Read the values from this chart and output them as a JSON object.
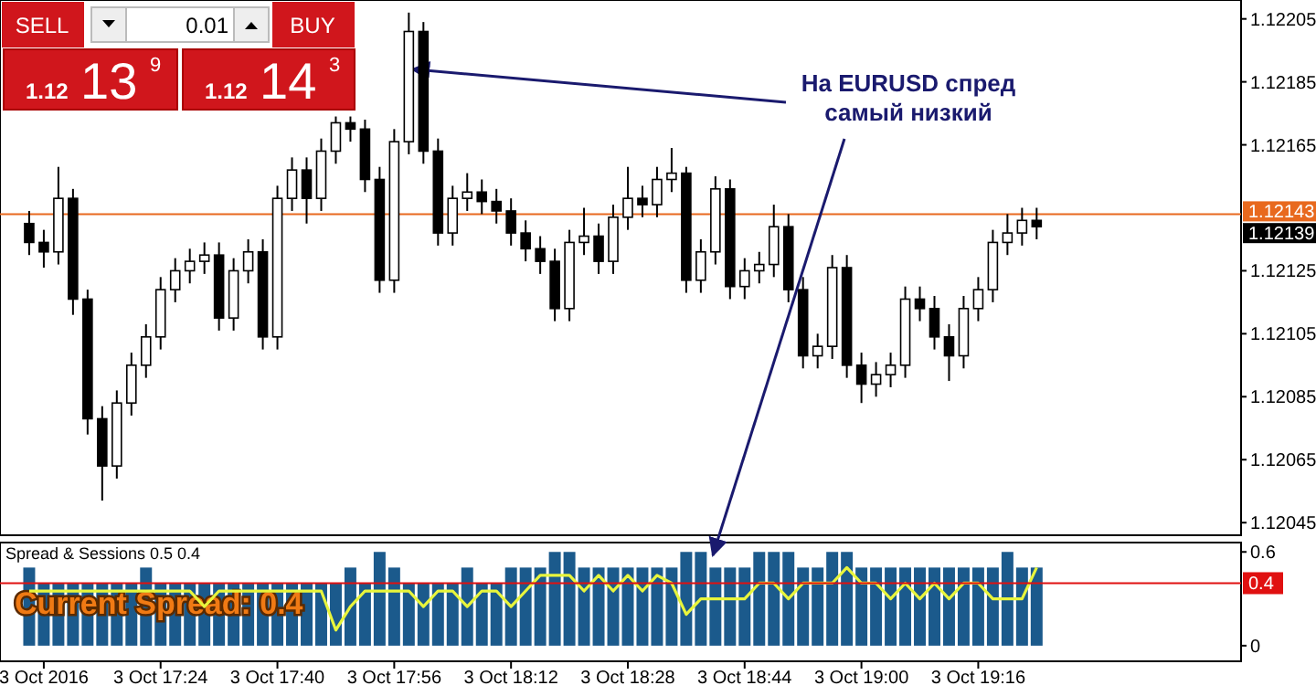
{
  "chart_data": [
    {
      "type": "candlestick",
      "tick_labels": "y",
      "xlim": [
        "2016-10-03T17:02",
        "2016-10-03T19:52"
      ],
      "ylim": [
        1.12041,
        1.12211
      ],
      "yticks": [
        1.12205,
        1.12185,
        1.12165,
        1.12125,
        1.12105,
        1.12085,
        1.12065,
        1.12045
      ],
      "x": [
        "2016-10-03T17:06",
        "2016-10-03T17:08",
        "2016-10-03T17:10",
        "2016-10-03T17:12",
        "2016-10-03T17:14",
        "2016-10-03T17:16",
        "2016-10-03T17:18",
        "2016-10-03T17:20",
        "2016-10-03T17:22",
        "2016-10-03T17:24",
        "2016-10-03T17:26",
        "2016-10-03T17:28",
        "2016-10-03T17:30",
        "2016-10-03T17:32",
        "2016-10-03T17:34",
        "2016-10-03T17:36",
        "2016-10-03T17:38",
        "2016-10-03T17:40",
        "2016-10-03T17:42",
        "2016-10-03T17:44",
        "2016-10-03T17:46",
        "2016-10-03T17:48",
        "2016-10-03T17:50",
        "2016-10-03T17:52",
        "2016-10-03T17:54",
        "2016-10-03T17:56",
        "2016-10-03T17:58",
        "2016-10-03T18:00",
        "2016-10-03T18:02",
        "2016-10-03T18:04",
        "2016-10-03T18:06",
        "2016-10-03T18:08",
        "2016-10-03T18:10",
        "2016-10-03T18:12",
        "2016-10-03T18:14",
        "2016-10-03T18:16",
        "2016-10-03T18:18",
        "2016-10-03T18:20",
        "2016-10-03T18:22",
        "2016-10-03T18:24",
        "2016-10-03T18:26",
        "2016-10-03T18:28",
        "2016-10-03T18:30",
        "2016-10-03T18:32",
        "2016-10-03T18:34",
        "2016-10-03T18:36",
        "2016-10-03T18:38",
        "2016-10-03T18:40",
        "2016-10-03T18:42",
        "2016-10-03T18:44",
        "2016-10-03T18:46",
        "2016-10-03T18:48",
        "2016-10-03T18:50",
        "2016-10-03T18:52",
        "2016-10-03T18:54",
        "2016-10-03T18:56",
        "2016-10-03T18:58",
        "2016-10-03T19:00",
        "2016-10-03T19:02",
        "2016-10-03T19:04",
        "2016-10-03T19:06",
        "2016-10-03T19:08",
        "2016-10-03T19:10",
        "2016-10-03T19:12",
        "2016-10-03T19:14",
        "2016-10-03T19:16",
        "2016-10-03T19:18",
        "2016-10-03T19:20",
        "2016-10-03T19:22",
        "2016-10-03T19:24"
      ],
      "ohlc": [
        [
          1.1214,
          1.12144,
          1.1213,
          1.12134
        ],
        [
          1.12134,
          1.12138,
          1.12126,
          1.12131
        ],
        [
          1.12131,
          1.12158,
          1.12127,
          1.12148
        ],
        [
          1.12148,
          1.12151,
          1.12111,
          1.12116
        ],
        [
          1.12116,
          1.12119,
          1.12073,
          1.12078
        ],
        [
          1.12078,
          1.12082,
          1.12052,
          1.12063
        ],
        [
          1.12063,
          1.12087,
          1.12059,
          1.12083
        ],
        [
          1.12083,
          1.12099,
          1.12079,
          1.12095
        ],
        [
          1.12095,
          1.12108,
          1.12091,
          1.12104
        ],
        [
          1.12104,
          1.12123,
          1.121,
          1.12119
        ],
        [
          1.12119,
          1.12129,
          1.12115,
          1.12125
        ],
        [
          1.12125,
          1.12132,
          1.12121,
          1.12128
        ],
        [
          1.12128,
          1.12134,
          1.12124,
          1.1213
        ],
        [
          1.1213,
          1.12134,
          1.12106,
          1.1211
        ],
        [
          1.1211,
          1.12129,
          1.12106,
          1.12125
        ],
        [
          1.12125,
          1.12135,
          1.12121,
          1.12131
        ],
        [
          1.12131,
          1.12135,
          1.121,
          1.12104
        ],
        [
          1.12104,
          1.12152,
          1.121,
          1.12148
        ],
        [
          1.12148,
          1.12161,
          1.12144,
          1.12157
        ],
        [
          1.12157,
          1.12161,
          1.1214,
          1.12148
        ],
        [
          1.12148,
          1.12167,
          1.12144,
          1.12163
        ],
        [
          1.12163,
          1.12174,
          1.12159,
          1.12172
        ],
        [
          1.12172,
          1.12174,
          1.12166,
          1.1217
        ],
        [
          1.1217,
          1.12173,
          1.1215,
          1.12154
        ],
        [
          1.12154,
          1.12158,
          1.12118,
          1.12122
        ],
        [
          1.12122,
          1.1217,
          1.12118,
          1.12166
        ],
        [
          1.12166,
          1.12207,
          1.12162,
          1.12201
        ],
        [
          1.12201,
          1.12204,
          1.12159,
          1.12163
        ],
        [
          1.12163,
          1.12167,
          1.12133,
          1.12137
        ],
        [
          1.12137,
          1.12152,
          1.12133,
          1.12148
        ],
        [
          1.12148,
          1.12156,
          1.12144,
          1.1215
        ],
        [
          1.1215,
          1.12154,
          1.12143,
          1.12147
        ],
        [
          1.12147,
          1.12151,
          1.1214,
          1.12144
        ],
        [
          1.12144,
          1.12148,
          1.12133,
          1.12137
        ],
        [
          1.12137,
          1.12141,
          1.12128,
          1.12132
        ],
        [
          1.12132,
          1.12136,
          1.12124,
          1.12128
        ],
        [
          1.12128,
          1.12132,
          1.12109,
          1.12113
        ],
        [
          1.12113,
          1.12138,
          1.12109,
          1.12134
        ],
        [
          1.12134,
          1.12145,
          1.1213,
          1.12136
        ],
        [
          1.12136,
          1.1214,
          1.12124,
          1.12128
        ],
        [
          1.12128,
          1.12146,
          1.12124,
          1.12142
        ],
        [
          1.12142,
          1.12158,
          1.12138,
          1.12148
        ],
        [
          1.12148,
          1.12152,
          1.12142,
          1.12146
        ],
        [
          1.12146,
          1.12158,
          1.12142,
          1.12154
        ],
        [
          1.12154,
          1.12164,
          1.1215,
          1.12156
        ],
        [
          1.12156,
          1.12158,
          1.12118,
          1.12122
        ],
        [
          1.12122,
          1.12135,
          1.12118,
          1.12131
        ],
        [
          1.12131,
          1.12155,
          1.12127,
          1.12151
        ],
        [
          1.12151,
          1.12154,
          1.12116,
          1.1212
        ],
        [
          1.1212,
          1.12129,
          1.12116,
          1.12125
        ],
        [
          1.12125,
          1.12131,
          1.12121,
          1.12127
        ],
        [
          1.12127,
          1.12146,
          1.12123,
          1.12139
        ],
        [
          1.12139,
          1.12143,
          1.12115,
          1.12119
        ],
        [
          1.12119,
          1.12123,
          1.12094,
          1.12098
        ],
        [
          1.12098,
          1.12105,
          1.12094,
          1.12101
        ],
        [
          1.12101,
          1.1213,
          1.12097,
          1.12126
        ],
        [
          1.12126,
          1.1213,
          1.12091,
          1.12095
        ],
        [
          1.12095,
          1.12099,
          1.12083,
          1.12089
        ],
        [
          1.12089,
          1.12096,
          1.12085,
          1.12092
        ],
        [
          1.12092,
          1.12099,
          1.12088,
          1.12095
        ],
        [
          1.12095,
          1.1212,
          1.12091,
          1.12116
        ],
        [
          1.12116,
          1.1212,
          1.12109,
          1.12113
        ],
        [
          1.12113,
          1.12117,
          1.121,
          1.12104
        ],
        [
          1.12104,
          1.12108,
          1.1209,
          1.12098
        ],
        [
          1.12098,
          1.12117,
          1.12094,
          1.12113
        ],
        [
          1.12113,
          1.12123,
          1.12109,
          1.12119
        ],
        [
          1.12119,
          1.12138,
          1.12115,
          1.12134
        ],
        [
          1.12134,
          1.12143,
          1.1213,
          1.12137
        ],
        [
          1.12137,
          1.12145,
          1.12133,
          1.12141
        ],
        [
          1.12141,
          1.12145,
          1.12135,
          1.12139
        ]
      ],
      "ref_lines": [
        {
          "axis": "y",
          "value": 1.12143,
          "label": "1.12143",
          "color": "#e8691e"
        }
      ],
      "annotations": [
        {
          "text": "На EURUSD спред\nсамый низкий",
          "x": "2016-10-03T17:58",
          "y": 1.12189
        },
        "SELL",
        "0.01",
        "BUY",
        "1.12 13$^{9}$",
        "1.12 14$^{3}$",
        "1.12139"
      ]
    },
    {
      "type": "bar",
      "title": "Spread & Sessions 0.5 0.4",
      "xlim": [
        "2016-10-03T17:02",
        "2016-10-03T19:52"
      ],
      "ylim": [
        -0.1,
        0.66
      ],
      "yticks": [
        0,
        0.6
      ],
      "xticks": [
        {
          "value": "2016-10-03T17:08",
          "label": "3 Oct 2016"
        },
        {
          "value": "2016-10-03T17:24",
          "label": "3 Oct 17:24"
        },
        {
          "value": "2016-10-03T17:40",
          "label": "3 Oct 17:40"
        },
        {
          "value": "2016-10-03T17:56",
          "label": "3 Oct 17:56"
        },
        {
          "value": "2016-10-03T18:12",
          "label": "3 Oct 18:12"
        },
        {
          "value": "2016-10-03T18:28",
          "label": "3 Oct 18:28"
        },
        {
          "value": "2016-10-03T18:44",
          "label": "3 Oct 18:44"
        },
        {
          "value": "2016-10-03T19:00",
          "label": "3 Oct 19:00"
        },
        {
          "value": "2016-10-03T19:16",
          "label": "3 Oct 19:16"
        }
      ],
      "x": [
        "2016-10-03T17:06",
        "2016-10-03T17:08",
        "2016-10-03T17:10",
        "2016-10-03T17:12",
        "2016-10-03T17:14",
        "2016-10-03T17:16",
        "2016-10-03T17:18",
        "2016-10-03T17:20",
        "2016-10-03T17:22",
        "2016-10-03T17:24",
        "2016-10-03T17:26",
        "2016-10-03T17:28",
        "2016-10-03T17:30",
        "2016-10-03T17:32",
        "2016-10-03T17:34",
        "2016-10-03T17:36",
        "2016-10-03T17:38",
        "2016-10-03T17:40",
        "2016-10-03T17:42",
        "2016-10-03T17:44",
        "2016-10-03T17:46",
        "2016-10-03T17:48",
        "2016-10-03T17:50",
        "2016-10-03T17:52",
        "2016-10-03T17:54",
        "2016-10-03T17:56",
        "2016-10-03T17:58",
        "2016-10-03T18:00",
        "2016-10-03T18:02",
        "2016-10-03T18:04",
        "2016-10-03T18:06",
        "2016-10-03T18:08",
        "2016-10-03T18:10",
        "2016-10-03T18:12",
        "2016-10-03T18:14",
        "2016-10-03T18:16",
        "2016-10-03T18:18",
        "2016-10-03T18:20",
        "2016-10-03T18:22",
        "2016-10-03T18:24",
        "2016-10-03T18:26",
        "2016-10-03T18:28",
        "2016-10-03T18:30",
        "2016-10-03T18:32",
        "2016-10-03T18:34",
        "2016-10-03T18:36",
        "2016-10-03T18:38",
        "2016-10-03T18:40",
        "2016-10-03T18:42",
        "2016-10-03T18:44",
        "2016-10-03T18:46",
        "2016-10-03T18:48",
        "2016-10-03T18:50",
        "2016-10-03T18:52",
        "2016-10-03T18:54",
        "2016-10-03T18:56",
        "2016-10-03T18:58",
        "2016-10-03T19:00",
        "2016-10-03T19:02",
        "2016-10-03T19:04",
        "2016-10-03T19:06",
        "2016-10-03T19:08",
        "2016-10-03T19:10",
        "2016-10-03T19:12",
        "2016-10-03T19:14",
        "2016-10-03T19:16",
        "2016-10-03T19:18",
        "2016-10-03T19:20",
        "2016-10-03T19:22",
        "2016-10-03T19:24"
      ],
      "series": [
        {
          "color": "#1b5a8c",
          "values": [
            0.5,
            0.4,
            0.4,
            0.4,
            0.4,
            0.4,
            0.4,
            0.4,
            0.5,
            0.4,
            0.4,
            0.4,
            0.4,
            0.4,
            0.4,
            0.4,
            0.4,
            0.4,
            0.4,
            0.4,
            0.4,
            0.4,
            0.5,
            0.4,
            0.6,
            0.5,
            0.4,
            0.4,
            0.4,
            0.4,
            0.5,
            0.4,
            0.4,
            0.5,
            0.5,
            0.5,
            0.6,
            0.6,
            0.5,
            0.5,
            0.5,
            0.5,
            0.5,
            0.5,
            0.5,
            0.6,
            0.6,
            0.5,
            0.5,
            0.5,
            0.6,
            0.6,
            0.6,
            0.5,
            0.5,
            0.6,
            0.6,
            0.5,
            0.5,
            0.5,
            0.5,
            0.5,
            0.5,
            0.5,
            0.5,
            0.5,
            0.5,
            0.6,
            0.5,
            0.5
          ]
        },
        {
          "type": "line",
          "color": "#e8f53c",
          "values": [
            0.35,
            0.35,
            0.35,
            0.35,
            0.35,
            0.35,
            0.35,
            0.35,
            0.35,
            0.35,
            0.35,
            0.35,
            0.25,
            0.35,
            0.35,
            0.35,
            0.35,
            0.35,
            0.35,
            0.35,
            0.35,
            0.1,
            0.25,
            0.35,
            0.35,
            0.35,
            0.35,
            0.25,
            0.35,
            0.35,
            0.25,
            0.35,
            0.35,
            0.25,
            0.35,
            0.45,
            0.45,
            0.45,
            0.35,
            0.45,
            0.35,
            0.45,
            0.35,
            0.45,
            0.4,
            0.2,
            0.3,
            0.3,
            0.3,
            0.3,
            0.4,
            0.4,
            0.3,
            0.4,
            0.4,
            0.4,
            0.5,
            0.4,
            0.4,
            0.3,
            0.4,
            0.3,
            0.4,
            0.3,
            0.4,
            0.4,
            0.3,
            0.3,
            0.3,
            0.5
          ]
        }
      ],
      "ref_lines": [
        {
          "axis": "y",
          "value": 0.4,
          "label": "0.4",
          "color": "#e01010"
        }
      ],
      "annotations": [
        "Current Spread: 0.4"
      ]
    }
  ]
}
